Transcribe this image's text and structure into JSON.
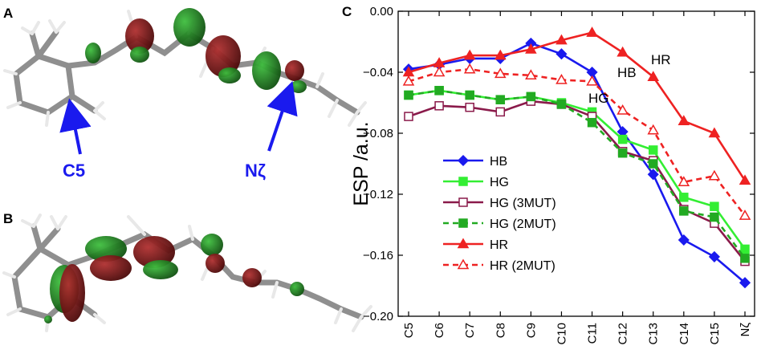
{
  "panels": {
    "a": {
      "label": "A",
      "annotations": [
        "C5",
        "Nζ"
      ]
    },
    "b": {
      "label": "B"
    },
    "c": {
      "label": "C"
    }
  },
  "colors": {
    "arrow": "#1a1aee",
    "stick": "#8f8f8f",
    "orbital_green": "#1e7d1e",
    "orbital_red": "#801414",
    "HB": "#1a1aee",
    "HG": "#33ee33",
    "HG_3MUT": "#8a1a4a",
    "HG_2MUT": "#22aa22",
    "HR": "#ee2222",
    "HR_2MUT": "#ee2222"
  },
  "chart_data": {
    "type": "line",
    "title": "",
    "xlabel": "",
    "ylabel": "ESP /a.u.",
    "categories": [
      "C5",
      "C6",
      "C7",
      "C8",
      "C9",
      "C10",
      "C11",
      "C12",
      "C13",
      "C14",
      "C15",
      "Nζ"
    ],
    "ylim": [
      -0.2,
      0.0
    ],
    "yticks": [
      0.0,
      -0.04,
      -0.08,
      -0.12,
      -0.16,
      -0.2
    ],
    "ytick_labels": [
      "0.00",
      "−0.04",
      "−0.08",
      "−0.12",
      "−0.16",
      "−0.20"
    ],
    "grid": false,
    "legend_position": "left-bottom",
    "series": [
      {
        "key": "HB",
        "name": "HB",
        "color": "#1a1aee",
        "marker": "diamond",
        "filled": true,
        "dash": false,
        "values": [
          -0.038,
          -0.035,
          -0.031,
          -0.031,
          -0.021,
          -0.028,
          -0.04,
          -0.079,
          -0.107,
          -0.15,
          -0.161,
          -0.178
        ]
      },
      {
        "key": "HG",
        "name": "HG",
        "color": "#33ee33",
        "marker": "square",
        "filled": true,
        "dash": false,
        "values": [
          -0.055,
          -0.052,
          -0.055,
          -0.058,
          -0.056,
          -0.06,
          -0.066,
          -0.084,
          -0.091,
          -0.122,
          -0.128,
          -0.156
        ]
      },
      {
        "key": "HG_3MUT",
        "name": "HG (3MUT)",
        "color": "#8a1a4a",
        "marker": "square",
        "filled": false,
        "dash": false,
        "values": [
          -0.069,
          -0.062,
          -0.063,
          -0.066,
          -0.059,
          -0.061,
          -0.069,
          -0.092,
          -0.098,
          -0.13,
          -0.139,
          -0.164
        ]
      },
      {
        "key": "HG_2MUT",
        "name": "HG (2MUT)",
        "color": "#22aa22",
        "marker": "square",
        "filled": true,
        "dash": true,
        "values": [
          -0.055,
          -0.052,
          -0.055,
          -0.058,
          -0.056,
          -0.061,
          -0.073,
          -0.093,
          -0.1,
          -0.131,
          -0.135,
          -0.162
        ]
      },
      {
        "key": "HR",
        "name": "HR",
        "color": "#ee2222",
        "marker": "triangle",
        "filled": true,
        "dash": false,
        "values": [
          -0.04,
          -0.034,
          -0.029,
          -0.029,
          -0.025,
          -0.019,
          -0.014,
          -0.027,
          -0.043,
          -0.072,
          -0.08,
          -0.111
        ]
      },
      {
        "key": "HR_2MUT",
        "name": "HR (2MUT)",
        "color": "#ee2222",
        "marker": "triangle",
        "filled": false,
        "dash": true,
        "values": [
          -0.046,
          -0.04,
          -0.038,
          -0.041,
          -0.042,
          -0.045,
          -0.046,
          -0.065,
          -0.078,
          -0.112,
          -0.108,
          -0.134
        ]
      }
    ],
    "annotations": [
      "HB",
      "HG",
      "HR"
    ]
  }
}
